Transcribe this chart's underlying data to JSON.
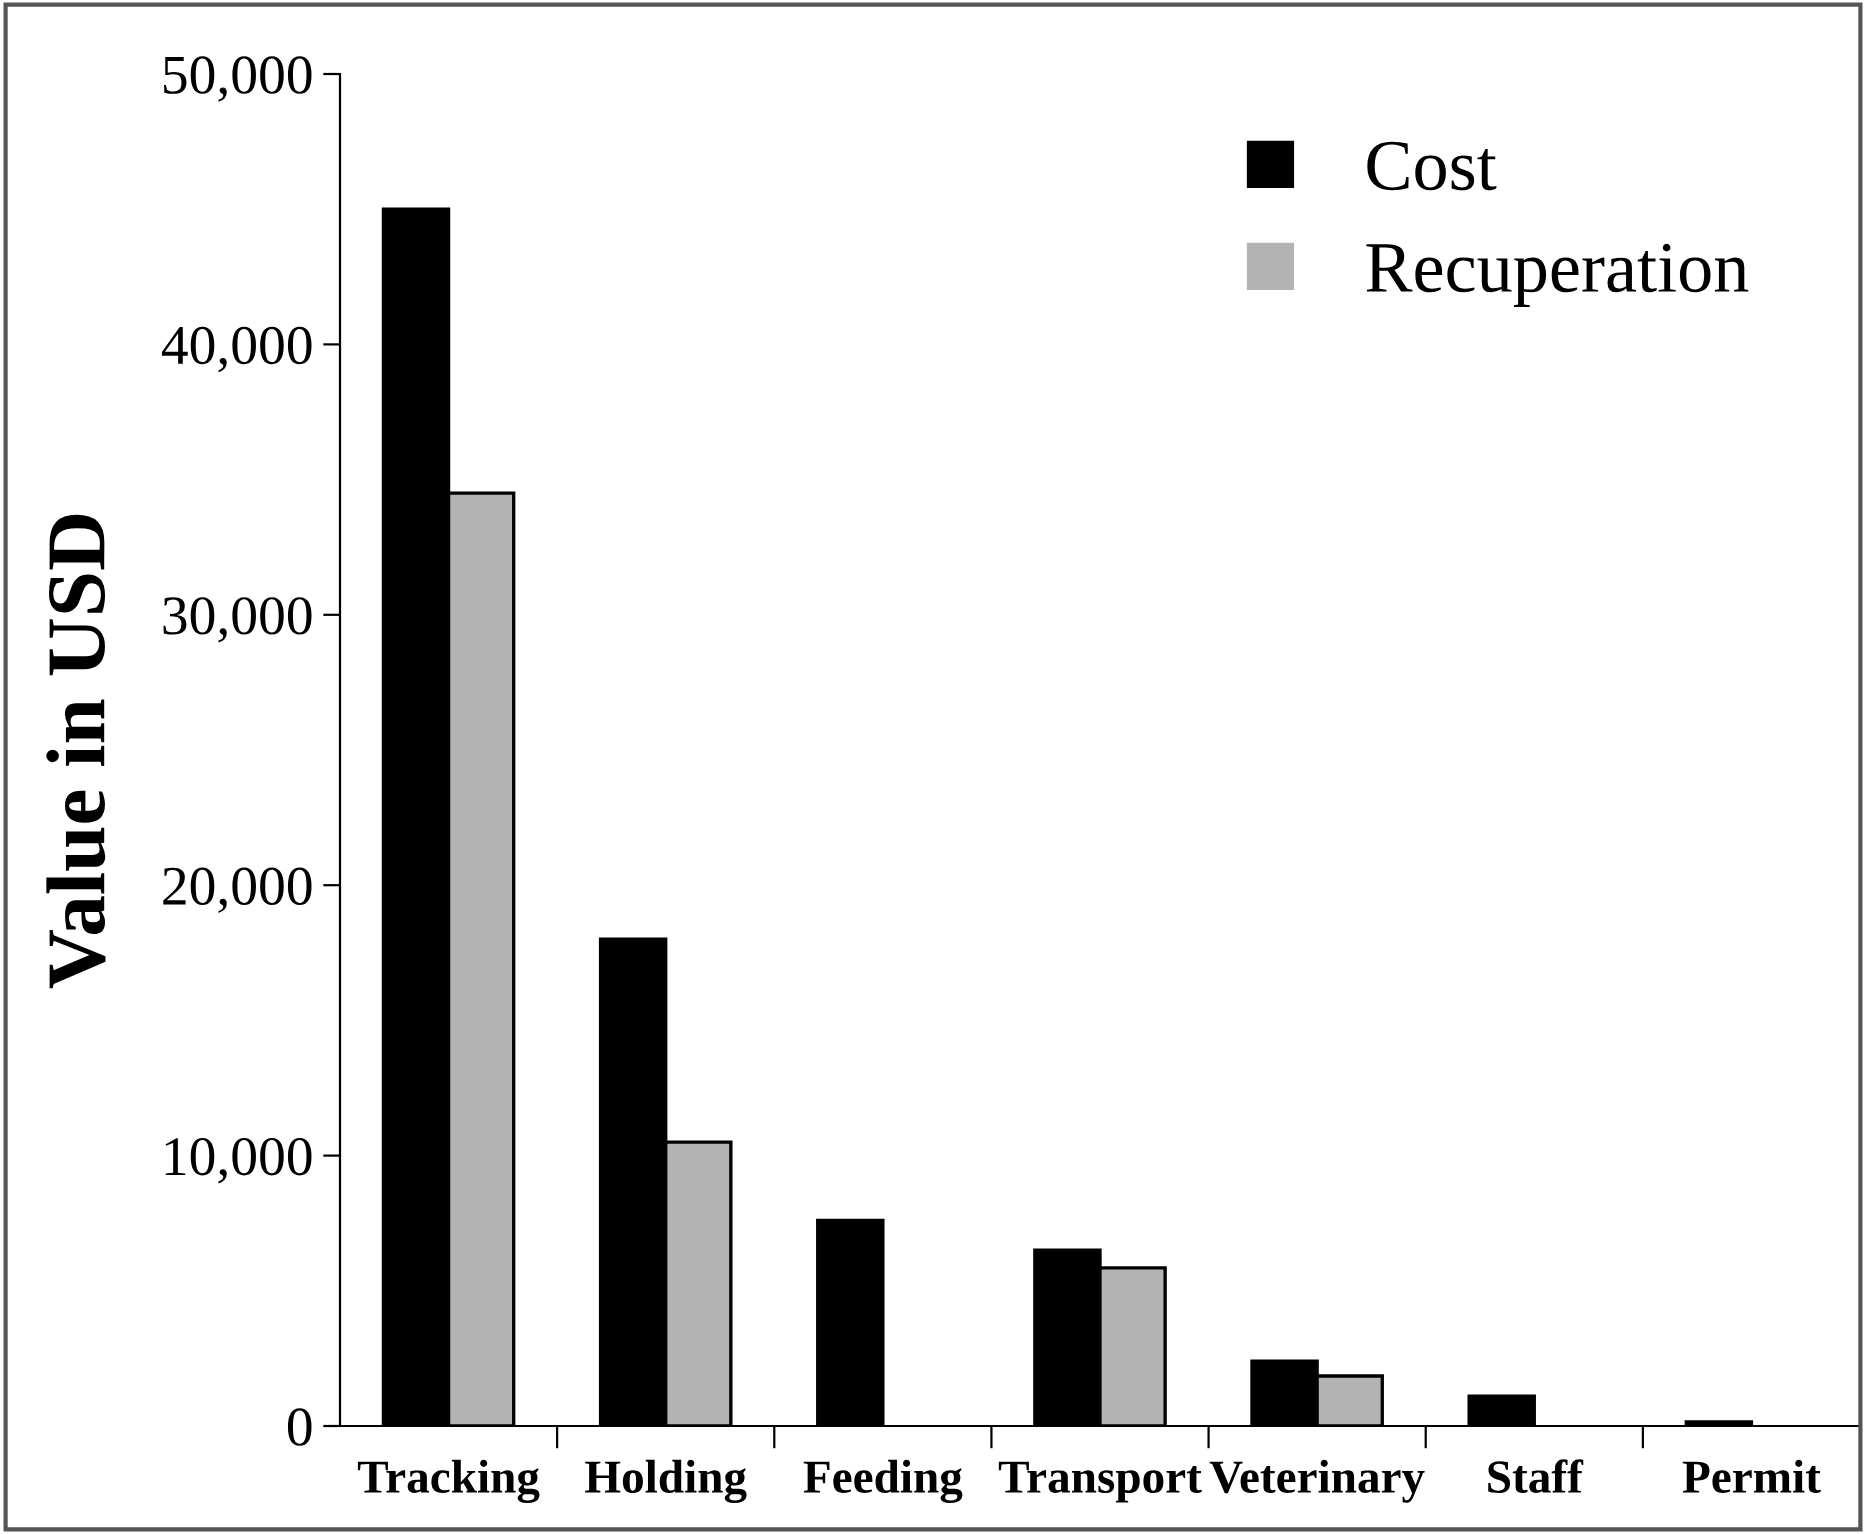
{
  "chart_data": {
    "type": "bar",
    "ylabel": "Value in USD",
    "categories": [
      "Tracking",
      "Holding",
      "Feeding",
      "Transport",
      "Veterinary",
      "Staff",
      "Permit"
    ],
    "series": [
      {
        "name": "Cost",
        "color": "#000000",
        "values": [
          45000,
          18000,
          7600,
          6500,
          2400,
          1100,
          150
        ]
      },
      {
        "name": "Recuperation",
        "color": "#b3b3b3",
        "values": [
          34500,
          10500,
          null,
          5850,
          1850,
          null,
          null
        ]
      }
    ],
    "ylim": [
      0,
      50000
    ],
    "yticks": [
      {
        "value": 0,
        "label": "0"
      },
      {
        "value": 10000,
        "label": "10,000"
      },
      {
        "value": 20000,
        "label": "20,000"
      },
      {
        "value": 30000,
        "label": "30,000"
      },
      {
        "value": 40000,
        "label": "40,000"
      },
      {
        "value": 50000,
        "label": "50,000"
      }
    ],
    "grid": false,
    "legend": "top right"
  }
}
